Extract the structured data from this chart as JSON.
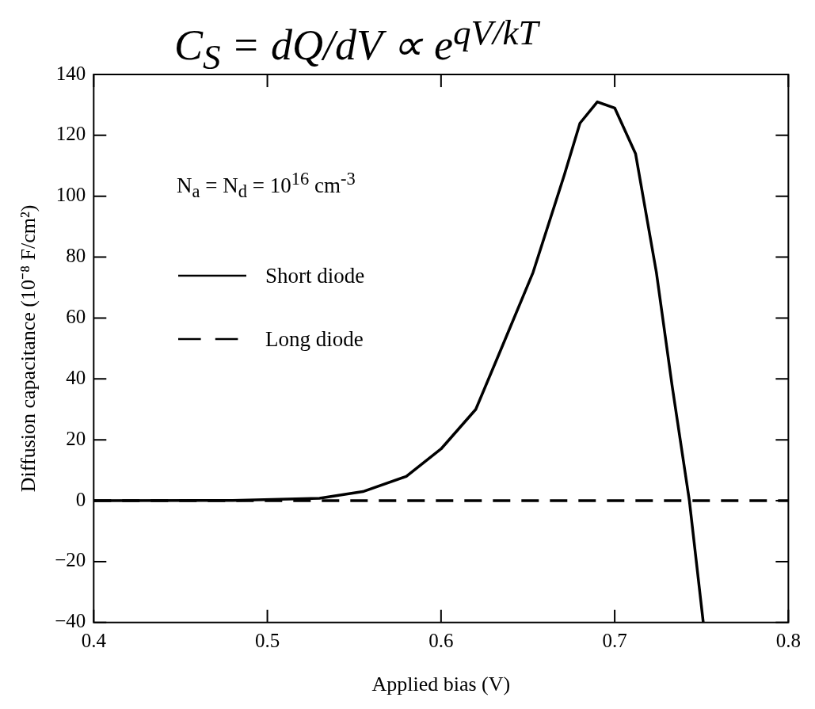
{
  "chart_data": {
    "type": "line",
    "title": "C$_{S}$ = dQ/dV ∝ e$^{qV/kT}$",
    "xlabel": "Applied bias (V)",
    "ylabel": "Diffusion capacitance (10⁻⁸ F/cm²)",
    "annotations": [
      "N$_{a}$ = N$_{d}$ = 10$^{16}$ cm$^{-3}$"
    ],
    "xlim": [
      0.4,
      0.8
    ],
    "xticks": [
      0.4,
      0.5,
      0.6,
      0.7,
      0.8
    ],
    "ylim": [
      -40,
      140
    ],
    "yticks": [
      -40,
      -20,
      0,
      20,
      40,
      60,
      80,
      100,
      120,
      140
    ],
    "legend": "top left",
    "marker": "none",
    "series": [
      {
        "name": "Short diode",
        "color": "#000000",
        "line_style": "solid",
        "x": [
          0.4,
          0.48,
          0.53,
          0.555,
          0.58,
          0.6,
          0.62,
          0.634,
          0.653,
          0.671,
          0.68,
          0.69,
          0.7,
          0.712,
          0.724,
          0.733,
          0.743,
          0.751
        ],
        "values": [
          0,
          0.1,
          0.8,
          3,
          8,
          17,
          30,
          49,
          75,
          107,
          124,
          131,
          129,
          114,
          75,
          38,
          0,
          -40
        ]
      },
      {
        "name": "Long diode",
        "color": "#000000",
        "line_style": "dashed",
        "x": [
          0.4,
          0.8
        ],
        "values": [
          0,
          0
        ]
      }
    ]
  }
}
